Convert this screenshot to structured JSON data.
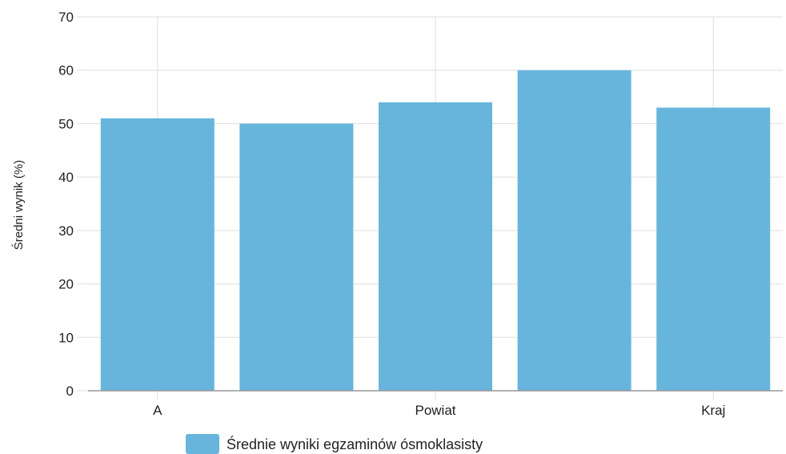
{
  "chart_data": {
    "type": "bar",
    "categories": [
      "A",
      "",
      "Powiat",
      "",
      "Kraj"
    ],
    "series": [
      {
        "name": "Średnie wyniki egzaminów ósmoklasisty",
        "values": [
          51,
          50,
          54,
          60,
          53
        ],
        "color": "#67b5dc"
      }
    ],
    "title": "",
    "xlabel": "",
    "ylabel": "Średni wynik (%)",
    "ylim": [
      0,
      70
    ],
    "yticks": [
      "0",
      "10",
      "20",
      "30",
      "40",
      "50",
      "60",
      "70"
    ],
    "grid": true,
    "legend": "bottom"
  },
  "colors": {
    "bar": "#67b5dc",
    "grid": "#dddddd",
    "axis": "#999999",
    "text": "#222222"
  }
}
